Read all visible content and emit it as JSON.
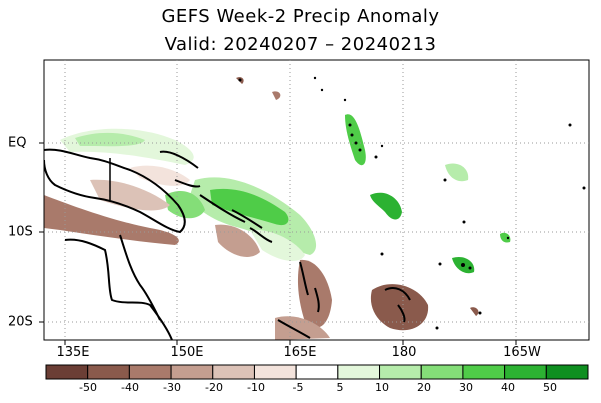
{
  "title": "GEFS Week-2 Precip Anomaly",
  "subtitle": "Valid: 20240207 – 20240213",
  "map": {
    "lon_labels": [
      "135E",
      "150E",
      "165E",
      "180",
      "165W"
    ],
    "lat_labels": [
      "EQ",
      "10S",
      "20S"
    ]
  },
  "colorbar": {
    "labels": [
      "-50",
      "-40",
      "-30",
      "-20",
      "-10",
      "-5",
      "5",
      "10",
      "20",
      "30",
      "40",
      "50"
    ],
    "colors": [
      "#6b3e35",
      "#8a5a4c",
      "#a97a6b",
      "#c49e90",
      "#dcc2b7",
      "#f3e3dc",
      "#ffffff",
      "#e3f7db",
      "#b6ecab",
      "#84de78",
      "#4fcc48",
      "#2cb232",
      "#0f8f20"
    ]
  }
}
